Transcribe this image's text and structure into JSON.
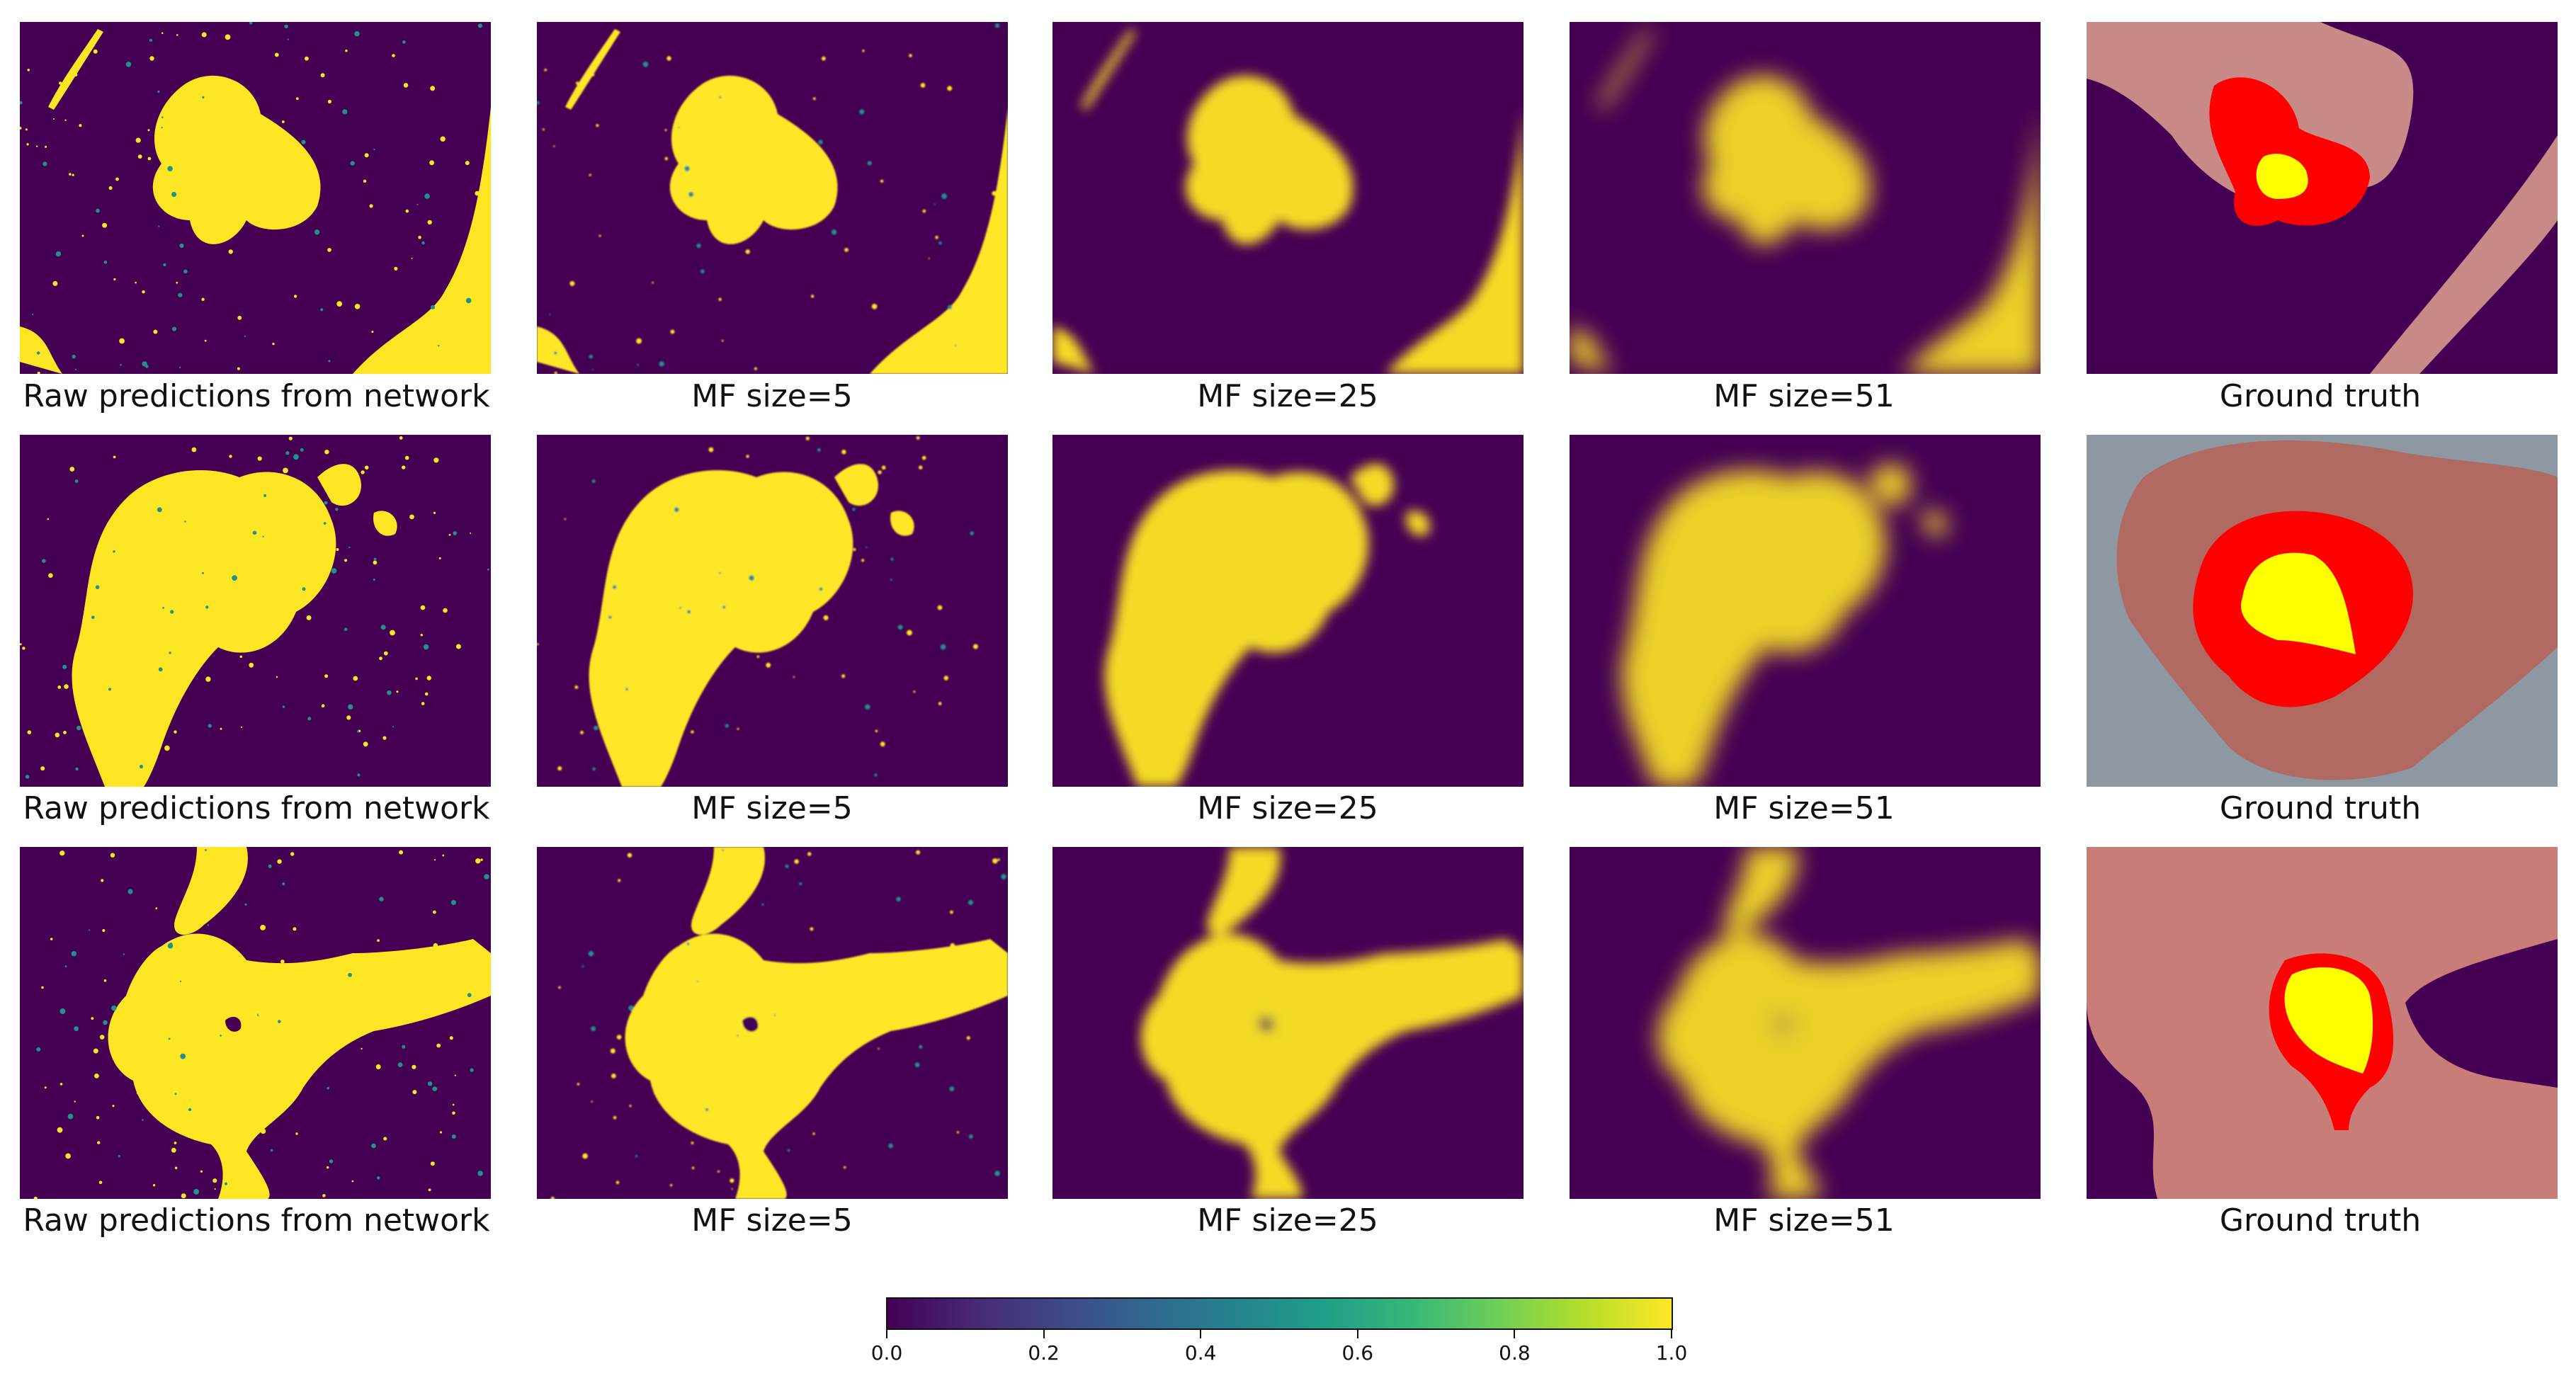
{
  "figure": {
    "rows": [
      {
        "panels": [
          {
            "caption": "Raw predictions from network",
            "kind": "heatmap"
          },
          {
            "caption": "MF size=5",
            "kind": "heatmap"
          },
          {
            "caption": "MF size=25",
            "kind": "heatmap"
          },
          {
            "caption": "MF size=51",
            "kind": "heatmap"
          },
          {
            "caption": "Ground truth",
            "kind": "photo"
          }
        ]
      },
      {
        "panels": [
          {
            "caption": "Raw predictions from network",
            "kind": "heatmap"
          },
          {
            "caption": "MF size=5",
            "kind": "heatmap"
          },
          {
            "caption": "MF size=25",
            "kind": "heatmap"
          },
          {
            "caption": "MF size=51",
            "kind": "heatmap"
          },
          {
            "caption": "Ground truth",
            "kind": "photo"
          }
        ]
      },
      {
        "panels": [
          {
            "caption": "Raw predictions from network",
            "kind": "heatmap"
          },
          {
            "caption": "MF size=5",
            "kind": "heatmap"
          },
          {
            "caption": "MF size=25",
            "kind": "heatmap"
          },
          {
            "caption": "MF size=51",
            "kind": "heatmap"
          },
          {
            "caption": "Ground truth",
            "kind": "photo"
          }
        ]
      }
    ],
    "colorbar": {
      "colormap": "viridis",
      "range": [
        0.0,
        1.0
      ],
      "ticks": [
        "0.0",
        "0.2",
        "0.4",
        "0.6",
        "0.8",
        "1.0"
      ]
    },
    "colors": {
      "background_low": "#440154",
      "high": "#fde725",
      "tumor_outer": "#ff0000",
      "tumor_core": "#ffff00"
    }
  }
}
